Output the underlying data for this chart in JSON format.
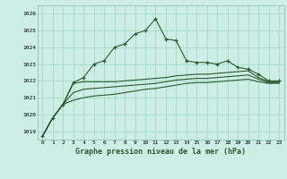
{
  "title": "Graphe pression niveau de la mer (hPa)",
  "bg_color": "#cceee4",
  "grid_color": "#aaddcc",
  "line_color": "#2d5a2d",
  "y_min": 1018.5,
  "y_max": 1026.5,
  "y_ticks": [
    1019,
    1020,
    1021,
    1022,
    1023,
    1024,
    1025,
    1026
  ],
  "series_main": [
    1018.7,
    1019.8,
    1020.6,
    1021.9,
    1022.2,
    1023.0,
    1023.2,
    1024.0,
    1024.2,
    1024.8,
    1025.0,
    1025.7,
    1024.5,
    1024.4,
    1023.2,
    1023.1,
    1023.1,
    1023.0,
    1023.2,
    1022.8,
    1022.7,
    1022.4,
    1022.0,
    1022.0
  ],
  "series_low1": [
    1018.7,
    1019.8,
    1020.6,
    1021.85,
    1021.95,
    1021.95,
    1021.95,
    1021.95,
    1022.0,
    1022.05,
    1022.1,
    1022.15,
    1022.2,
    1022.3,
    1022.35,
    1022.4,
    1022.4,
    1022.45,
    1022.5,
    1022.55,
    1022.6,
    1022.2,
    1021.95,
    1021.95
  ],
  "series_low2": [
    1018.7,
    1019.8,
    1020.6,
    1021.3,
    1021.5,
    1021.55,
    1021.6,
    1021.65,
    1021.7,
    1021.75,
    1021.8,
    1021.85,
    1021.95,
    1022.05,
    1022.1,
    1022.15,
    1022.15,
    1022.2,
    1022.25,
    1022.3,
    1022.35,
    1022.1,
    1021.9,
    1021.9
  ],
  "series_low3": [
    1018.7,
    1019.8,
    1020.6,
    1020.85,
    1021.0,
    1021.1,
    1021.15,
    1021.2,
    1021.3,
    1021.4,
    1021.5,
    1021.55,
    1021.65,
    1021.75,
    1021.85,
    1021.9,
    1021.9,
    1021.95,
    1022.0,
    1022.05,
    1022.1,
    1021.95,
    1021.85,
    1021.85
  ]
}
